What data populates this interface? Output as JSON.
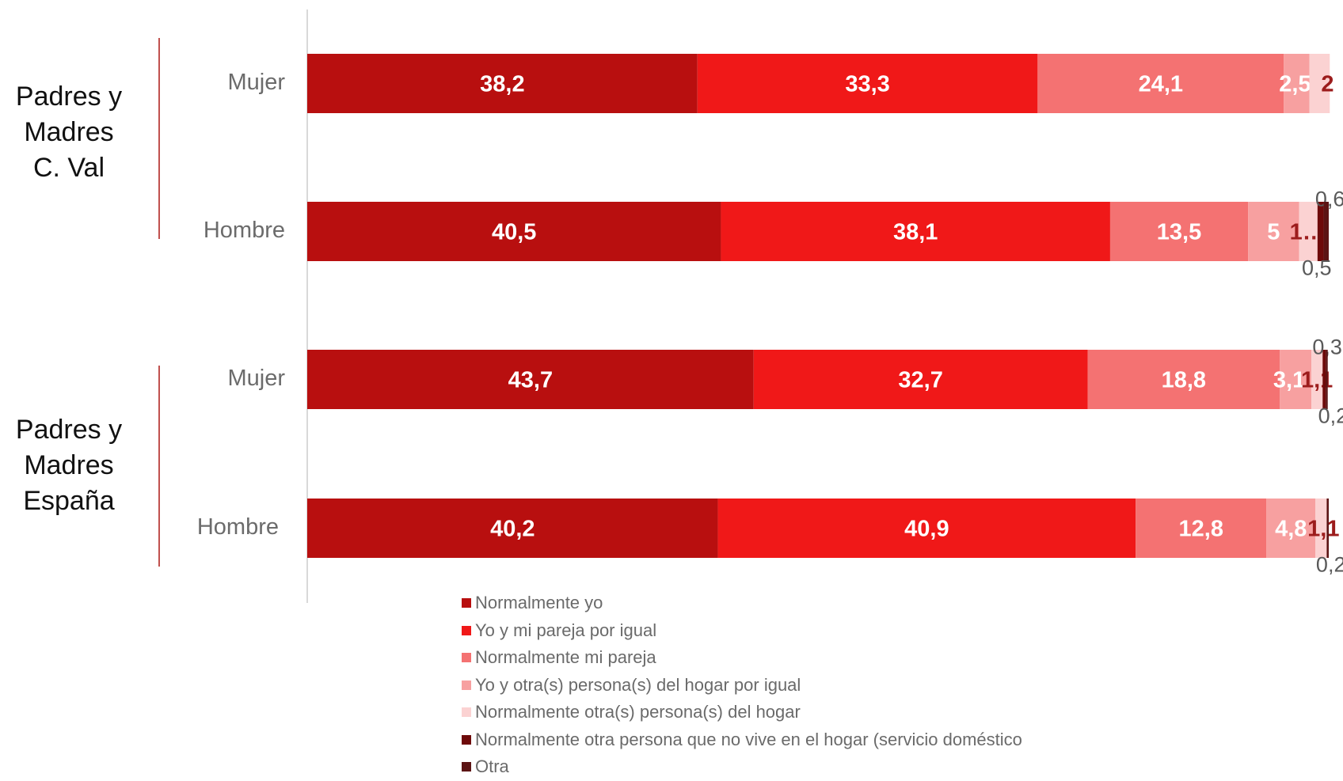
{
  "chart_data": {
    "type": "bar",
    "orientation": "horizontal",
    "stacked": true,
    "xlim": [
      0,
      100
    ],
    "groups": [
      {
        "label_lines": [
          "Padres y",
          "Madres",
          "C. Val"
        ],
        "rows": [
          {
            "label": "Mujer",
            "values": [
              38.2,
              33.3,
              24.1,
              2.5,
              2,
              0,
              0
            ],
            "data_labels": [
              "38,2",
              "33,3",
              "24,1",
              "2,5",
              "2",
              "",
              ""
            ]
          },
          {
            "label": "Hombre",
            "values": [
              40.5,
              38.1,
              13.5,
              5,
              1.8,
              0.6,
              0.5
            ],
            "data_labels": [
              "40,5",
              "38,1",
              "13,5",
              "5",
              "1…",
              "0,6",
              "0,5"
            ]
          }
        ]
      },
      {
        "label_lines": [
          "Padres y",
          "Madres",
          "España"
        ],
        "rows": [
          {
            "label": "Mujer",
            "values": [
              43.7,
              32.7,
              18.8,
              3.1,
              1.1,
              0.3,
              0.2
            ],
            "data_labels": [
              "43,7",
              "32,7",
              "18,8",
              "3,1",
              "1,1",
              "0,3",
              "0,2"
            ]
          },
          {
            "label": "Hombre",
            "values": [
              40.2,
              40.9,
              12.8,
              4.8,
              1.1,
              0,
              0.2
            ],
            "data_labels": [
              "40,2",
              "40,9",
              "12,8",
              "4,8",
              "1,1",
              "",
              "0,2"
            ]
          }
        ]
      }
    ],
    "series": [
      {
        "name": "Normalmente yo",
        "color": "#b80f0f"
      },
      {
        "name": "Yo y mi pareja por igual",
        "color": "#f01818"
      },
      {
        "name": "Normalmente mi pareja",
        "color": "#f47272"
      },
      {
        "name": "Yo y otra(s) persona(s) del hogar por igual",
        "color": "#f7a0a0"
      },
      {
        "name": "Normalmente otra(s) persona(s) del hogar",
        "color": "#fbd2d2"
      },
      {
        "name": "Normalmente otra persona que no vive en el hogar (servicio doméstico",
        "color": "#6e0a0a"
      },
      {
        "name": "Otra",
        "color": "#5c1414"
      }
    ],
    "legend_position": "bottom",
    "grid": false
  }
}
